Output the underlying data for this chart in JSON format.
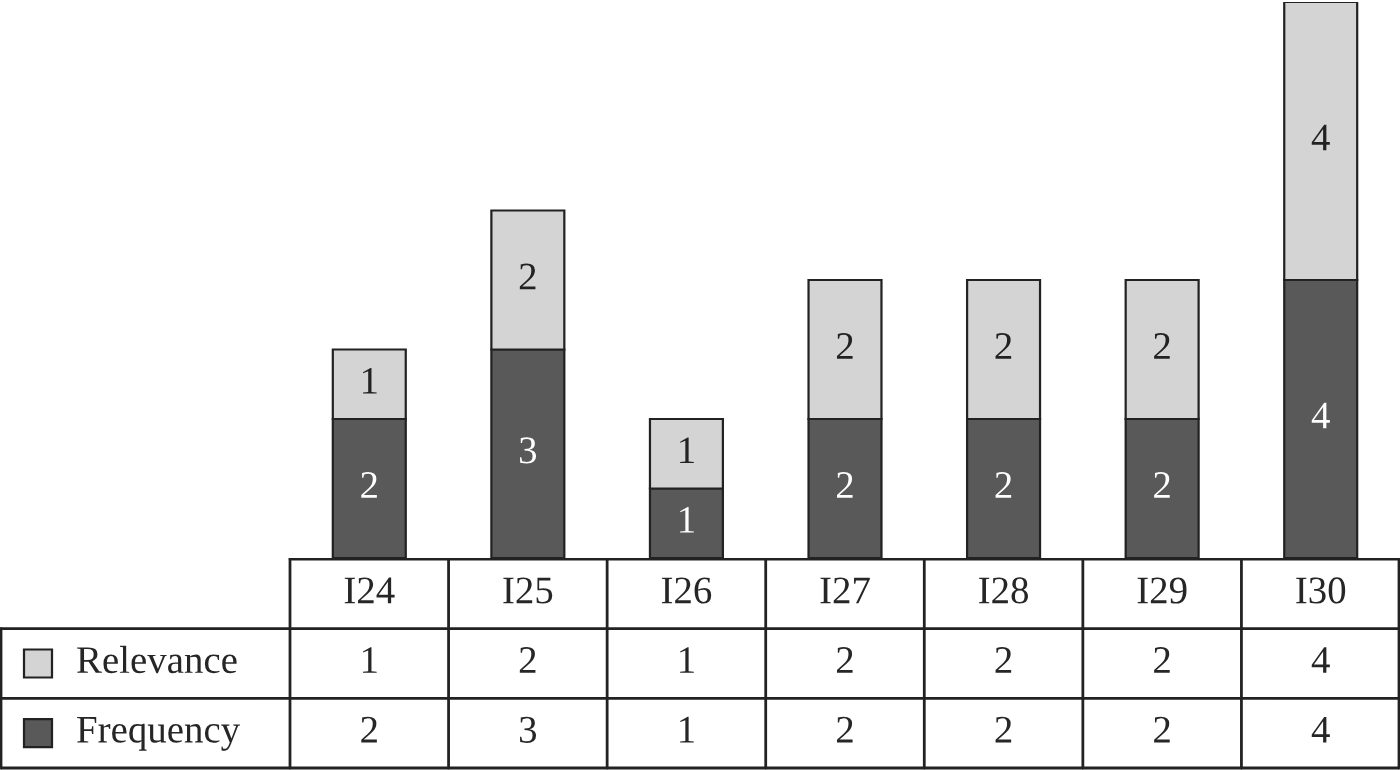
{
  "chart_data": {
    "type": "bar",
    "stacked": true,
    "legend": "bottom left",
    "categories": [
      "I24",
      "I25",
      "I26",
      "I27",
      "I28",
      "I29",
      "I30"
    ],
    "series": [
      {
        "name": "Frequency",
        "color": "#595959",
        "values": [
          2,
          3,
          1,
          2,
          2,
          2,
          4
        ],
        "value_labels": [
          "2",
          "3",
          "1",
          "2",
          "2",
          "2",
          "4"
        ]
      },
      {
        "name": "Relevance",
        "color": "#d4d4d4",
        "values": [
          1,
          2,
          1,
          2,
          2,
          2,
          4
        ],
        "value_labels": [
          "1",
          "2",
          "1",
          "2",
          "2",
          "2",
          "4"
        ]
      }
    ],
    "annotations": [
      "1",
      "2",
      "1",
      "2",
      "2",
      "2",
      "4",
      "2",
      "3",
      "1",
      "2",
      "2",
      "2",
      "4"
    ]
  }
}
